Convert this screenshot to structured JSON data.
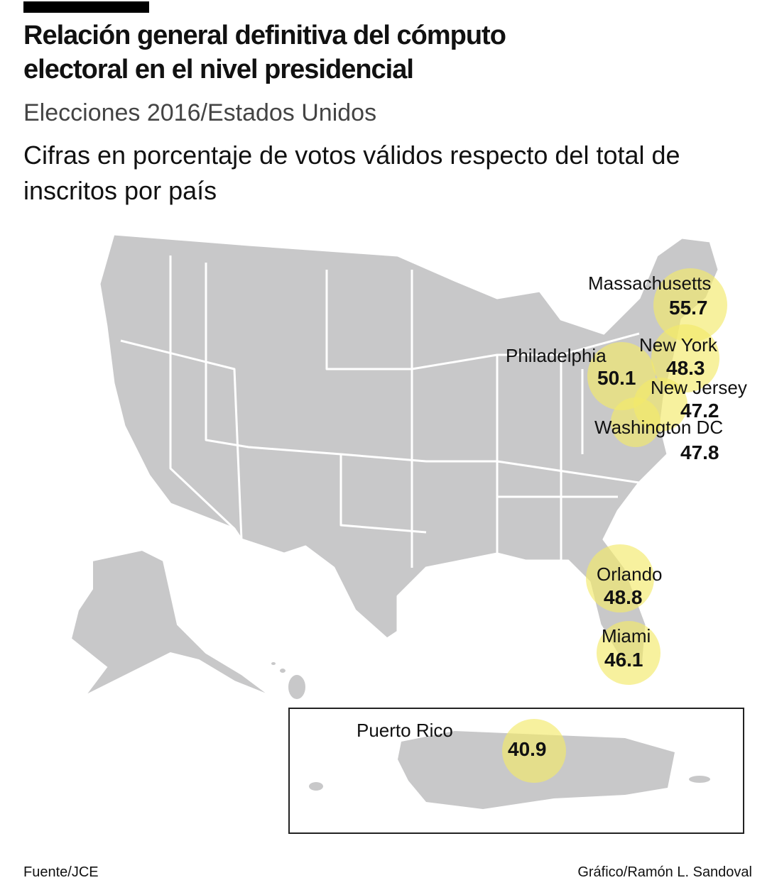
{
  "header": {
    "title_line1": "Relación general definitiva del cómputo",
    "title_line2": "electoral en el nivel presidencial",
    "subtitle": "Elecciones 2016/Estados Unidos",
    "description": "Cifras en porcentaje de votos válidos respecto del total de inscritos por país"
  },
  "colors": {
    "land": "#c8c8c9",
    "border": "#ffffff",
    "marker": "#f3ea6a"
  },
  "locations": [
    {
      "name": "Massachusetts",
      "value": "55.7"
    },
    {
      "name": "New York",
      "value": "48.3"
    },
    {
      "name": "Philadelphia",
      "value": "50.1"
    },
    {
      "name": "New Jersey",
      "value": "47.2"
    },
    {
      "name": "Washington DC",
      "value": "47.8"
    },
    {
      "name": "Orlando",
      "value": "48.8"
    },
    {
      "name": "Miami",
      "value": "46.1"
    },
    {
      "name": "Puerto Rico",
      "value": "40.9"
    }
  ],
  "footer": {
    "source": "Fuente/JCE",
    "credit": "Gráfico/Ramón L. Sandoval"
  }
}
